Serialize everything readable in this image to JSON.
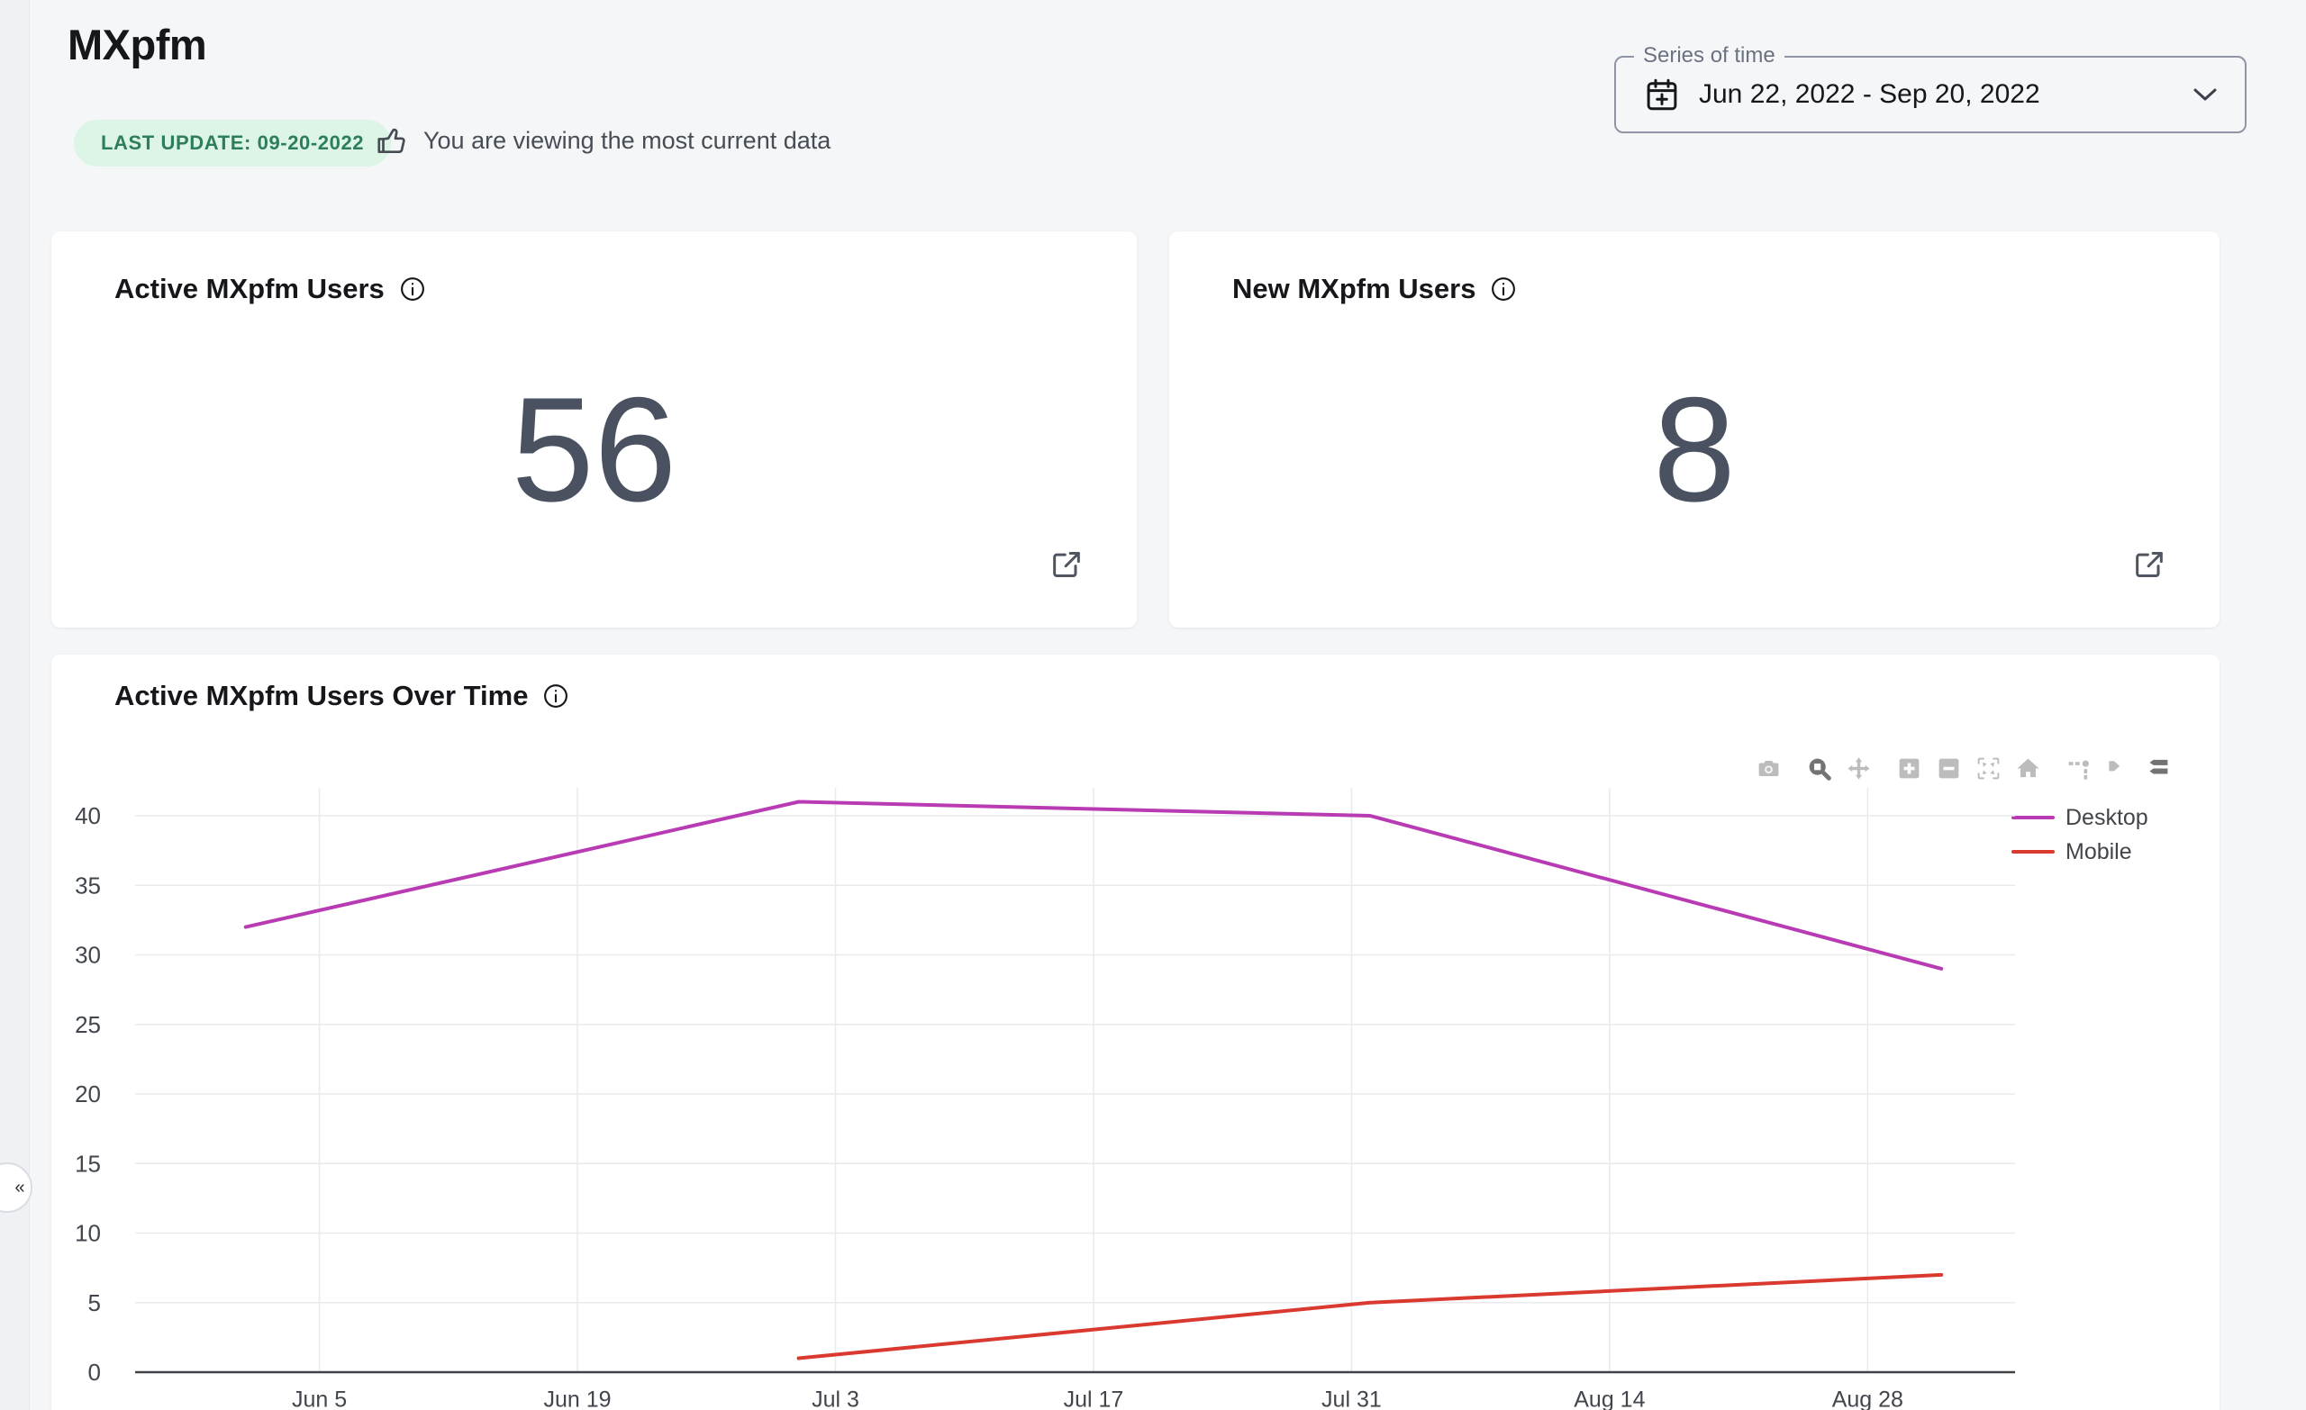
{
  "page": {
    "title": "MXpfm"
  },
  "header": {
    "last_update_badge": "LAST UPDATE: 09-20-2022",
    "status_message": "You are viewing the most current data",
    "date_filter": {
      "label": "Series of time",
      "value": "Jun 22, 2022 - Sep 20, 2022"
    }
  },
  "metric_cards": [
    {
      "title": "Active MXpfm Users",
      "value": "56"
    },
    {
      "title": "New MXpfm Users",
      "value": "8"
    }
  ],
  "chart_card": {
    "title": "Active MXpfm Users Over Time"
  },
  "modebar": [
    {
      "name": "download-plot",
      "title": "Download plot as a png"
    },
    {
      "name": "zoom",
      "title": "Zoom",
      "active": true
    },
    {
      "name": "pan",
      "title": "Pan"
    },
    {
      "name": "zoom-in",
      "title": "Zoom in"
    },
    {
      "name": "zoom-out",
      "title": "Zoom out"
    },
    {
      "name": "autoscale",
      "title": "Autoscale"
    },
    {
      "name": "reset-axes",
      "title": "Reset axes"
    },
    {
      "name": "toggle-spikelines",
      "title": "Toggle Spike Lines"
    },
    {
      "name": "hover-closest",
      "title": "Show closest data on hover"
    },
    {
      "name": "hover-compare",
      "title": "Compare data on hover",
      "active": true
    }
  ],
  "chart_data": {
    "type": "line",
    "title": "Active MXpfm Users Over Time",
    "xlabel": "",
    "ylabel": "",
    "grid": true,
    "legend_position": "top-right",
    "x_ticks": [
      "Jun 5",
      "Jun 19",
      "Jul 3",
      "Jul 17",
      "Jul 31",
      "Aug 14",
      "Aug 28"
    ],
    "x_tick_days": [
      0,
      14,
      28,
      42,
      56,
      70,
      84
    ],
    "x_range_days": [
      -10,
      92
    ],
    "y_ticks": [
      0,
      5,
      10,
      15,
      20,
      25,
      30,
      35,
      40
    ],
    "ylim": [
      0,
      42
    ],
    "series": [
      {
        "name": "Desktop",
        "color": "#b93bb4",
        "points": [
          {
            "date": "Jun 1",
            "day": -4,
            "value": 32
          },
          {
            "date": "Jul 1",
            "day": 26,
            "value": 41
          },
          {
            "date": "Aug 1",
            "day": 57,
            "value": 40
          },
          {
            "date": "Sep 1",
            "day": 88,
            "value": 29
          }
        ]
      },
      {
        "name": "Mobile",
        "color": "#d9392f",
        "points": [
          {
            "date": "Jul 1",
            "day": 26,
            "value": 1
          },
          {
            "date": "Aug 1",
            "day": 57,
            "value": 5
          },
          {
            "date": "Sep 1",
            "day": 88,
            "value": 7
          }
        ]
      }
    ],
    "colors": {
      "grid": "#e9eaec",
      "zero_line": "#3f4246",
      "tick_text": "#41464c"
    }
  }
}
